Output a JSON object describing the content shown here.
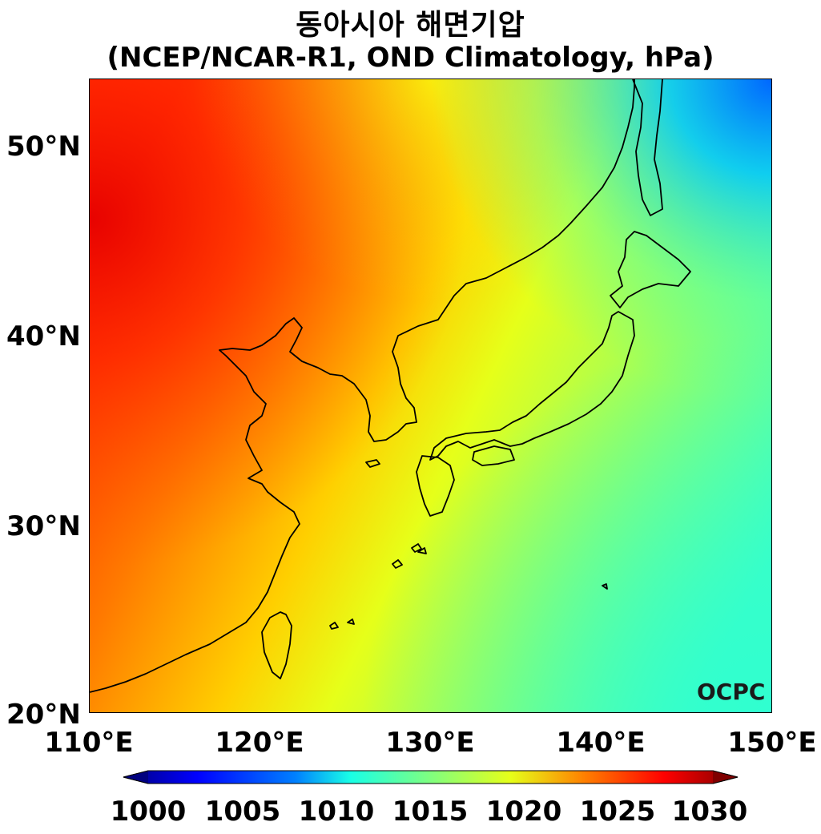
{
  "title": {
    "line1": "동아시아 해면기압",
    "line2": "(NCEP/NCAR-R1, OND Climatology, hPa)"
  },
  "map": {
    "lat_ticks": [
      "50°N",
      "40°N",
      "30°N",
      "20°N"
    ],
    "lon_ticks": [
      "110°E",
      "120°E",
      "130°E",
      "140°E",
      "150°E"
    ],
    "lat_range": [
      20,
      53.5
    ],
    "lon_range": [
      110,
      150
    ],
    "logo_text": "OCPC"
  },
  "colorbar": {
    "ticks": [
      "1000",
      "1005",
      "1010",
      "1015",
      "1020",
      "1025",
      "1030"
    ],
    "range": [
      1000,
      1030
    ],
    "colors": [
      "#00007f",
      "#0000ff",
      "#0080ff",
      "#19ffe6",
      "#80ff7f",
      "#e6ff19",
      "#ff8000",
      "#ff0000",
      "#7f0000"
    ]
  }
}
